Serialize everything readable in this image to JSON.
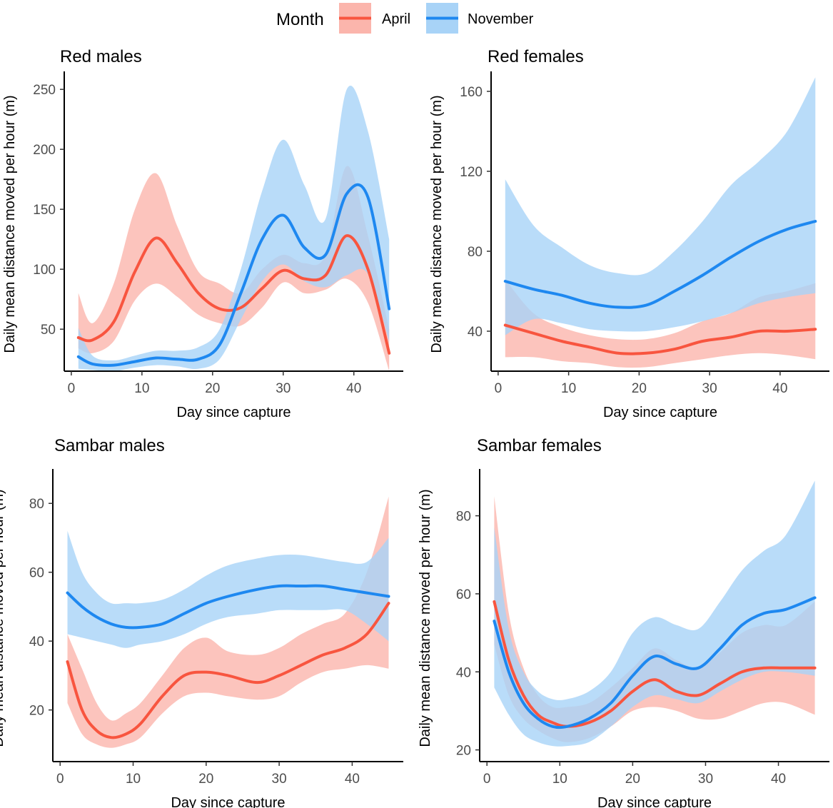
{
  "legend": {
    "title": "Month",
    "entries": [
      {
        "label": "April",
        "line_color": "#F8553F",
        "band_color": "#FBB5AC"
      },
      {
        "label": "November",
        "line_color": "#1E88F0",
        "band_color": "#A8D3F7"
      }
    ]
  },
  "chart_data": [
    {
      "type": "line",
      "title": "Red males",
      "xlabel": "Day since capture",
      "ylabel": "Daily mean distance moved per hour (m)",
      "xlim": [
        -1,
        47
      ],
      "ylim": [
        15,
        265
      ],
      "xticks": [
        0,
        10,
        20,
        30,
        40
      ],
      "yticks": [
        50,
        100,
        150,
        200,
        250
      ],
      "x": [
        1,
        3,
        6,
        9,
        12,
        15,
        18,
        21,
        24,
        27,
        30,
        33,
        36,
        39,
        42,
        45
      ],
      "series": [
        {
          "name": "April",
          "values": [
            43,
            41,
            56,
            98,
            126,
            105,
            80,
            67,
            68,
            84,
            99,
            92,
            95,
            128,
            100,
            30
          ],
          "lower": [
            34,
            30,
            40,
            74,
            88,
            77,
            62,
            55,
            53,
            68,
            89,
            80,
            83,
            92,
            72,
            15
          ],
          "upper": [
            80,
            55,
            88,
            150,
            180,
            136,
            98,
            88,
            80,
            100,
            112,
            105,
            112,
            186,
            128,
            50
          ]
        },
        {
          "name": "November",
          "values": [
            27,
            21,
            20,
            23,
            26,
            25,
            25,
            37,
            80,
            125,
            145,
            118,
            112,
            163,
            160,
            67
          ],
          "lower": [
            17,
            16,
            15,
            18,
            20,
            19,
            17,
            25,
            58,
            90,
            104,
            90,
            85,
            95,
            96,
            40
          ],
          "upper": [
            51,
            28,
            24,
            28,
            32,
            32,
            35,
            50,
            100,
            165,
            208,
            170,
            142,
            250,
            215,
            125
          ]
        }
      ]
    },
    {
      "type": "line",
      "title": "Red females",
      "xlabel": "Day since capture",
      "ylabel": "Daily mean distance moved per hour (m)",
      "xlim": [
        -1,
        47
      ],
      "ylim": [
        20,
        170
      ],
      "xticks": [
        0,
        10,
        20,
        30,
        40
      ],
      "yticks": [
        40,
        80,
        120,
        160
      ],
      "x": [
        1,
        5,
        9,
        13,
        17,
        21,
        25,
        29,
        33,
        37,
        41,
        45
      ],
      "series": [
        {
          "name": "April",
          "values": [
            43,
            39,
            35,
            32,
            29,
            29,
            31,
            35,
            37,
            40,
            40,
            41
          ],
          "lower": [
            27,
            27,
            25,
            24,
            22,
            22,
            24,
            26,
            28,
            29,
            28,
            26
          ],
          "upper": [
            66,
            49,
            42,
            38,
            36,
            36,
            39,
            45,
            49,
            57,
            60,
            64
          ]
        },
        {
          "name": "November",
          "values": [
            65,
            61,
            58,
            54,
            52,
            53,
            60,
            68,
            77,
            85,
            91,
            95
          ],
          "lower": [
            38,
            46,
            44,
            41,
            40,
            40,
            42,
            45,
            49,
            54,
            57,
            59
          ],
          "upper": [
            116,
            93,
            82,
            73,
            69,
            69,
            80,
            95,
            113,
            125,
            140,
            167
          ]
        }
      ]
    },
    {
      "type": "line",
      "title": "Sambar males",
      "xlabel": "Day since capture",
      "ylabel": "Daily mean distance moved per hour (m)",
      "xlim": [
        -1,
        47
      ],
      "ylim": [
        5,
        90
      ],
      "xticks": [
        0,
        10,
        20,
        30,
        40
      ],
      "yticks": [
        20,
        40,
        60,
        80
      ],
      "x": [
        1,
        3,
        5,
        7,
        9,
        11,
        14,
        17,
        20,
        23,
        27,
        30,
        33,
        36,
        39,
        42,
        45
      ],
      "series": [
        {
          "name": "April",
          "values": [
            34,
            20,
            14,
            12,
            13,
            16,
            24,
            30,
            31,
            30,
            28,
            30,
            33,
            36,
            38,
            42,
            51
          ],
          "lower": [
            22,
            13,
            10,
            9,
            10,
            12,
            19,
            24,
            25,
            24,
            23,
            24,
            28,
            31,
            32,
            33,
            32
          ],
          "upper": [
            42,
            32,
            22,
            17,
            19,
            22,
            30,
            38,
            41,
            37,
            36,
            38,
            42,
            45,
            48,
            60,
            82
          ]
        },
        {
          "name": "November",
          "values": [
            54,
            50,
            47,
            45,
            44,
            44,
            45,
            48,
            51,
            53,
            55,
            56,
            56,
            56,
            55,
            54,
            53
          ],
          "lower": [
            42,
            41,
            40,
            39,
            38,
            39,
            40,
            42,
            45,
            47,
            48,
            49,
            49,
            49,
            49,
            45,
            40
          ],
          "upper": [
            72,
            60,
            54,
            51,
            51,
            51,
            52,
            55,
            59,
            62,
            64,
            65,
            65,
            64,
            63,
            63,
            70
          ]
        }
      ]
    },
    {
      "type": "line",
      "title": "Sambar females",
      "xlabel": "Day since capture",
      "ylabel": "Daily mean distance moved per hour (m)",
      "xlim": [
        -1,
        47
      ],
      "ylim": [
        17,
        92
      ],
      "xticks": [
        0,
        10,
        20,
        30,
        40
      ],
      "yticks": [
        20,
        40,
        60,
        80
      ],
      "x": [
        1,
        3,
        5,
        7,
        9,
        11,
        14,
        17,
        20,
        23,
        26,
        29,
        32,
        35,
        38,
        41,
        45
      ],
      "series": [
        {
          "name": "April",
          "values": [
            58,
            43,
            34,
            29,
            27,
            26,
            27,
            30,
            35,
            38,
            35,
            34,
            37,
            40,
            41,
            41,
            41
          ],
          "lower": [
            47,
            34,
            28,
            25,
            23,
            22,
            23,
            26,
            30,
            31,
            30,
            28,
            28,
            30,
            32,
            32,
            29
          ],
          "upper": [
            85,
            55,
            41,
            34,
            31,
            31,
            32,
            36,
            41,
            46,
            43,
            41,
            45,
            50,
            52,
            52,
            58
          ]
        },
        {
          "name": "November",
          "values": [
            53,
            40,
            32,
            28,
            26,
            26,
            28,
            32,
            39,
            44,
            42,
            41,
            46,
            52,
            55,
            56,
            59
          ],
          "lower": [
            36,
            29,
            24,
            22,
            21,
            21,
            22,
            26,
            31,
            34,
            33,
            32,
            35,
            38,
            40,
            40,
            39
          ],
          "upper": [
            77,
            51,
            40,
            35,
            33,
            33,
            35,
            40,
            50,
            54,
            52,
            51,
            58,
            66,
            71,
            75,
            89
          ]
        }
      ]
    }
  ]
}
